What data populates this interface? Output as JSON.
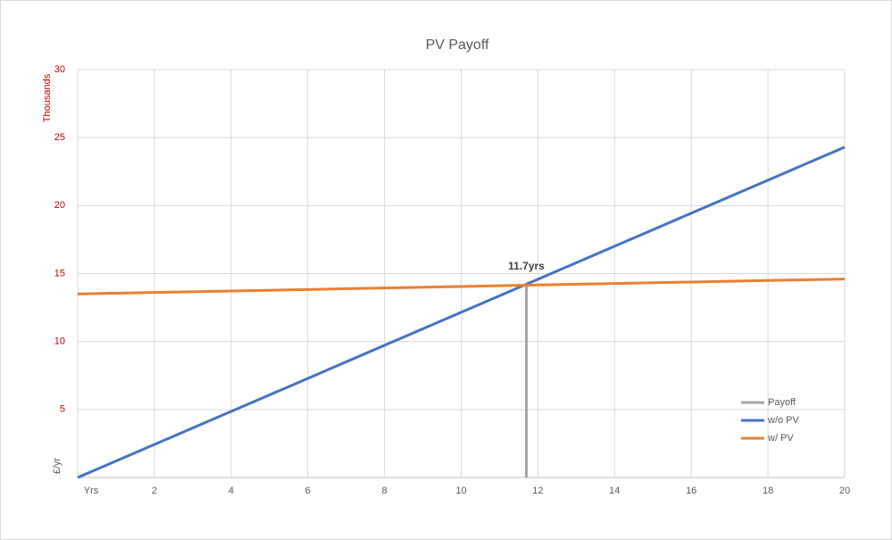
{
  "chart_data": {
    "type": "line",
    "title": "PV Payoff",
    "y_label": "£/yr",
    "y_unit_label": "Thousands",
    "x": [
      0,
      2,
      4,
      6,
      8,
      10,
      12,
      14,
      16,
      18,
      20
    ],
    "series": [
      {
        "name": "Payoff",
        "color": "#a5a5a5",
        "x": [
          11.7,
          11.7
        ],
        "values": [
          0,
          14.2
        ]
      },
      {
        "name": "w/o PV",
        "color": "#4472c4",
        "values": [
          0,
          2.43,
          4.86,
          7.29,
          9.72,
          12.15,
          14.58,
          17.01,
          19.44,
          21.87,
          24.3
        ]
      },
      {
        "name": "w/ PV",
        "color": "#ed7d31",
        "values": [
          13.5,
          13.61,
          13.72,
          13.83,
          13.94,
          14.05,
          14.16,
          14.27,
          14.38,
          14.49,
          14.6
        ]
      }
    ],
    "annotations": [
      {
        "text": "11.7yrs",
        "x": 11.7,
        "y": 14.2
      }
    ],
    "xlim": [
      0,
      20
    ],
    "xticks": [
      {
        "value": 0,
        "label": "Yrs"
      },
      2,
      4,
      6,
      8,
      10,
      12,
      14,
      16,
      18,
      20
    ],
    "ylim": [
      0,
      30
    ],
    "yticks": [
      5,
      10,
      15,
      20,
      25,
      30
    ],
    "grid": true,
    "legend": "bottom-right"
  }
}
